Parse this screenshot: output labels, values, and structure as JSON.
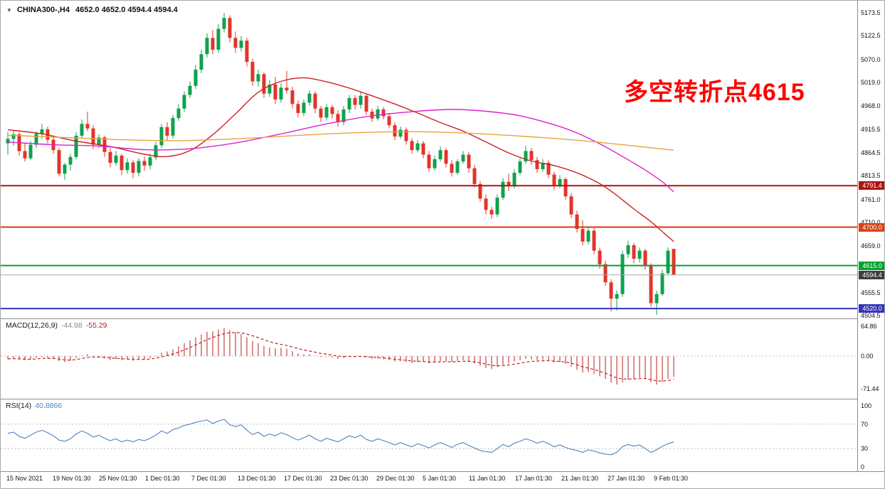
{
  "header": {
    "collapse_icon": "▼",
    "symbol": "CHINA300-,H4",
    "ohlc": "4652.0 4652.0 4594.4 4594.4"
  },
  "annotation": {
    "text": "多空转折点4615",
    "color": "#ff0000"
  },
  "price_axis": {
    "labels": [
      "5173.5",
      "5122.5",
      "5070.0",
      "5019.0",
      "4968.0",
      "4915.5",
      "4864.5",
      "4813.5",
      "4761.0",
      "4710.0",
      "4659.0",
      "4555.5",
      "4504.5"
    ]
  },
  "levels": [
    {
      "price": 4791.4,
      "label": "4791.4",
      "color": "#b01212",
      "badge_bg": "#b01212",
      "width": 2
    },
    {
      "price": 4700.0,
      "label": "4700.0",
      "color": "#d43a10",
      "badge_bg": "#d84315",
      "width": 2
    },
    {
      "price": 4615.0,
      "label": "4615.0",
      "color": "#00a32e",
      "badge_bg": "#00a32e",
      "width": 2
    },
    {
      "price": 4594.4,
      "label": "4594.4",
      "color": "#aaaaaa",
      "badge_bg": "#3d3d3d",
      "width": 1
    },
    {
      "price": 4520.0,
      "label": "4520.0",
      "color": "#3434b8",
      "badge_bg": "#3434b8",
      "width": 2
    }
  ],
  "macd_panel": {
    "name": "MACD(12,26,9)",
    "value_main": "-44.98",
    "value_signal": "-55.29",
    "axis_labels": [
      64.86,
      0.0,
      -71.44
    ]
  },
  "rsi_panel": {
    "name": "RSI(14)",
    "value": "40.8866",
    "axis_labels": [
      100,
      70,
      30,
      0
    ],
    "levels": [
      70,
      30
    ]
  },
  "colors": {
    "up": "#0fa24e",
    "down": "#e3342a",
    "macd_bar": "#dd8f8f",
    "macd_signal": "#c02020",
    "rsi_line": "#4f81bd",
    "grid_dotted": "#bdbdbd"
  },
  "chart_data": {
    "type": "candlestick",
    "symbol": "CHINA300",
    "timeframe": "H4",
    "price_range": [
      4504.5,
      5173.5
    ],
    "x_labels": [
      "15 Nov 2021",
      "19 Nov 01:30",
      "25 Nov 01:30",
      "1 Dec 01:30",
      "7 Dec 01:30",
      "13 Dec 01:30",
      "17 Dec 01:30",
      "23 Dec 01:30",
      "29 Dec 01:30",
      "5 Jan 01:30",
      "11 Jan 01:30",
      "17 Jan 01:30",
      "21 Jan 01:30",
      "27 Jan 01:30",
      "9 Feb 01:30"
    ],
    "candles": [
      [
        4885,
        4910,
        4860,
        4895
      ],
      [
        4895,
        4915,
        4880,
        4905
      ],
      [
        4905,
        4910,
        4858,
        4868
      ],
      [
        4868,
        4885,
        4845,
        4852
      ],
      [
        4852,
        4890,
        4848,
        4882
      ],
      [
        4882,
        4912,
        4875,
        4906
      ],
      [
        4906,
        4928,
        4895,
        4916
      ],
      [
        4916,
        4922,
        4885,
        4893
      ],
      [
        4893,
        4900,
        4862,
        4870
      ],
      [
        4870,
        4875,
        4812,
        4818
      ],
      [
        4818,
        4842,
        4805,
        4838
      ],
      [
        4838,
        4862,
        4825,
        4855
      ],
      [
        4855,
        4910,
        4850,
        4902
      ],
      [
        4902,
        4938,
        4895,
        4928
      ],
      [
        4928,
        4955,
        4912,
        4918
      ],
      [
        4918,
        4925,
        4872,
        4882
      ],
      [
        4882,
        4905,
        4875,
        4898
      ],
      [
        4898,
        4902,
        4855,
        4866
      ],
      [
        4866,
        4875,
        4832,
        4842
      ],
      [
        4842,
        4868,
        4836,
        4858
      ],
      [
        4858,
        4862,
        4815,
        4826
      ],
      [
        4826,
        4852,
        4818,
        4843
      ],
      [
        4843,
        4848,
        4808,
        4820
      ],
      [
        4820,
        4852,
        4812,
        4846
      ],
      [
        4846,
        4856,
        4825,
        4836
      ],
      [
        4836,
        4862,
        4828,
        4854
      ],
      [
        4854,
        4888,
        4848,
        4881
      ],
      [
        4881,
        4928,
        4875,
        4921
      ],
      [
        4921,
        4932,
        4892,
        4902
      ],
      [
        4902,
        4948,
        4896,
        4941
      ],
      [
        4941,
        4972,
        4935,
        4962
      ],
      [
        4962,
        5000,
        4955,
        4992
      ],
      [
        4992,
        5022,
        4985,
        5012
      ],
      [
        5012,
        5058,
        5005,
        5048
      ],
      [
        5048,
        5092,
        5040,
        5082
      ],
      [
        5082,
        5128,
        5075,
        5118
      ],
      [
        5118,
        5135,
        5082,
        5092
      ],
      [
        5092,
        5148,
        5085,
        5138
      ],
      [
        5138,
        5173.5,
        5130,
        5162
      ],
      [
        5162,
        5168,
        5108,
        5118
      ],
      [
        5118,
        5132,
        5085,
        5096
      ],
      [
        5096,
        5122,
        5088,
        5112
      ],
      [
        5112,
        5118,
        5055,
        5065
      ],
      [
        5065,
        5072,
        5012,
        5022
      ],
      [
        5022,
        5048,
        5010,
        5038
      ],
      [
        5038,
        5042,
        4985,
        4995
      ],
      [
        4995,
        5025,
        4988,
        5015
      ],
      [
        5015,
        5032,
        4972,
        4982
      ],
      [
        4982,
        5018,
        4975,
        5008
      ],
      [
        5008,
        5045,
        4995,
        5002
      ],
      [
        5002,
        5010,
        4962,
        4972
      ],
      [
        4972,
        4980,
        4942,
        4952
      ],
      [
        4952,
        4982,
        4945,
        4975
      ],
      [
        4975,
        5002,
        4968,
        4995
      ],
      [
        4995,
        5000,
        4952,
        4962
      ],
      [
        4962,
        4968,
        4932,
        4942
      ],
      [
        4942,
        4972,
        4935,
        4965
      ],
      [
        4965,
        4970,
        4940,
        4950
      ],
      [
        4950,
        4958,
        4922,
        4932
      ],
      [
        4932,
        4968,
        4925,
        4960
      ],
      [
        4960,
        4992,
        4952,
        4985
      ],
      [
        4985,
        4992,
        4960,
        4970
      ],
      [
        4970,
        4998,
        4962,
        4990
      ],
      [
        4990,
        4995,
        4948,
        4955
      ],
      [
        4955,
        4962,
        4932,
        4940
      ],
      [
        4940,
        4968,
        4935,
        4960
      ],
      [
        4960,
        4965,
        4938,
        4945
      ],
      [
        4945,
        4952,
        4918,
        4925
      ],
      [
        4925,
        4932,
        4892,
        4900
      ],
      [
        4900,
        4922,
        4895,
        4915
      ],
      [
        4915,
        4920,
        4882,
        4890
      ],
      [
        4890,
        4896,
        4862,
        4870
      ],
      [
        4870,
        4892,
        4865,
        4885
      ],
      [
        4885,
        4890,
        4852,
        4860
      ],
      [
        4860,
        4868,
        4822,
        4830
      ],
      [
        4830,
        4858,
        4825,
        4850
      ],
      [
        4850,
        4878,
        4845,
        4870
      ],
      [
        4870,
        4875,
        4832,
        4840
      ],
      [
        4840,
        4848,
        4812,
        4820
      ],
      [
        4820,
        4850,
        4815,
        4845
      ],
      [
        4845,
        4868,
        4840,
        4860
      ],
      [
        4860,
        4866,
        4820,
        4830
      ],
      [
        4830,
        4838,
        4788,
        4795
      ],
      [
        4795,
        4802,
        4756,
        4763
      ],
      [
        4763,
        4772,
        4728,
        4738
      ],
      [
        4738,
        4745,
        4718,
        4728
      ],
      [
        4728,
        4772,
        4722,
        4765
      ],
      [
        4765,
        4808,
        4760,
        4800
      ],
      [
        4800,
        4818,
        4780,
        4790
      ],
      [
        4790,
        4828,
        4785,
        4820
      ],
      [
        4820,
        4852,
        4815,
        4845
      ],
      [
        4845,
        4880,
        4840,
        4868
      ],
      [
        4868,
        4875,
        4838,
        4848
      ],
      [
        4848,
        4855,
        4820,
        4828
      ],
      [
        4828,
        4850,
        4822,
        4842
      ],
      [
        4842,
        4848,
        4808,
        4816
      ],
      [
        4816,
        4822,
        4782,
        4792
      ],
      [
        4792,
        4815,
        4786,
        4806
      ],
      [
        4806,
        4810,
        4760,
        4768
      ],
      [
        4768,
        4775,
        4720,
        4728
      ],
      [
        4728,
        4736,
        4688,
        4696
      ],
      [
        4696,
        4715,
        4660,
        4668
      ],
      [
        4668,
        4700,
        4662,
        4692
      ],
      [
        4692,
        4698,
        4640,
        4648
      ],
      [
        4648,
        4655,
        4608,
        4618
      ],
      [
        4618,
        4626,
        4570,
        4578
      ],
      [
        4578,
        4585,
        4514,
        4542
      ],
      [
        4542,
        4560,
        4516,
        4552
      ],
      [
        4552,
        4648,
        4546,
        4640
      ],
      [
        4640,
        4670,
        4632,
        4660
      ],
      [
        4660,
        4665,
        4620,
        4630
      ],
      [
        4630,
        4655,
        4622,
        4648
      ],
      [
        4648,
        4652,
        4606,
        4614
      ],
      [
        4614,
        4620,
        4524,
        4532
      ],
      [
        4532,
        4560,
        4506,
        4552
      ],
      [
        4552,
        4606,
        4548,
        4598
      ],
      [
        4598,
        4655,
        4594,
        4648
      ],
      [
        4652,
        4652,
        4594.4,
        4594.4
      ]
    ],
    "ma_lines": [
      {
        "name": "ma-fast-red",
        "color": "#cc2222",
        "points": [
          [
            0,
            4915
          ],
          [
            6,
            4906
          ],
          [
            12,
            4890
          ],
          [
            18,
            4878
          ],
          [
            24,
            4861
          ],
          [
            28,
            4856
          ],
          [
            32,
            4869
          ],
          [
            36,
            4904
          ],
          [
            40,
            4950
          ],
          [
            44,
            4998
          ],
          [
            48,
            5022
          ],
          [
            52,
            5030
          ],
          [
            56,
            5021
          ],
          [
            60,
            5007
          ],
          [
            64,
            4990
          ],
          [
            68,
            4972
          ],
          [
            72,
            4952
          ],
          [
            76,
            4931
          ],
          [
            80,
            4912
          ],
          [
            84,
            4888
          ],
          [
            88,
            4864
          ],
          [
            92,
            4846
          ],
          [
            96,
            4836
          ],
          [
            100,
            4820
          ],
          [
            104,
            4796
          ],
          [
            107,
            4770
          ],
          [
            110,
            4740
          ],
          [
            113,
            4712
          ],
          [
            115,
            4690
          ],
          [
            117,
            4668
          ]
        ]
      },
      {
        "name": "ma-mid-magenta",
        "color": "#dd22cc",
        "points": [
          [
            0,
            4888
          ],
          [
            8,
            4882
          ],
          [
            16,
            4879
          ],
          [
            24,
            4871
          ],
          [
            32,
            4873
          ],
          [
            40,
            4886
          ],
          [
            48,
            4906
          ],
          [
            56,
            4928
          ],
          [
            64,
            4946
          ],
          [
            72,
            4956
          ],
          [
            78,
            4960
          ],
          [
            84,
            4956
          ],
          [
            90,
            4946
          ],
          [
            96,
            4926
          ],
          [
            100,
            4908
          ],
          [
            104,
            4884
          ],
          [
            108,
            4856
          ],
          [
            112,
            4826
          ],
          [
            115,
            4800
          ],
          [
            117,
            4778
          ]
        ]
      },
      {
        "name": "ma-slow-orange",
        "color": "#e8a33d",
        "points": [
          [
            0,
            4903
          ],
          [
            10,
            4898
          ],
          [
            20,
            4893
          ],
          [
            30,
            4891
          ],
          [
            40,
            4895
          ],
          [
            50,
            4902
          ],
          [
            60,
            4908
          ],
          [
            70,
            4911
          ],
          [
            80,
            4908
          ],
          [
            90,
            4901
          ],
          [
            100,
            4892
          ],
          [
            108,
            4882
          ],
          [
            117,
            4870
          ]
        ]
      }
    ],
    "macd": {
      "range": [
        -71.44,
        64.86
      ],
      "histogram": [
        -6,
        -5,
        -7,
        -9,
        -7,
        -4,
        -2,
        -4,
        -6,
        -11,
        -13,
        -10,
        -4,
        1,
        4,
        1,
        -2,
        -5,
        -8,
        -7,
        -9,
        -8,
        -10,
        -7,
        -7,
        -4,
        1,
        7,
        10,
        15,
        21,
        28,
        34,
        41,
        47,
        53,
        54,
        58,
        61,
        57,
        52,
        48,
        41,
        33,
        28,
        22,
        19,
        17,
        18,
        16,
        11,
        6,
        4,
        4,
        1,
        -2,
        -1,
        -3,
        -6,
        -4,
        -1,
        -1,
        0,
        -3,
        -6,
        -5,
        -7,
        -9,
        -12,
        -11,
        -13,
        -15,
        -13,
        -13,
        -16,
        -14,
        -11,
        -11,
        -13,
        -11,
        -9,
        -12,
        -16,
        -21,
        -26,
        -28,
        -24,
        -19,
        -16,
        -12,
        -9,
        -6,
        -7,
        -9,
        -8,
        -10,
        -14,
        -13,
        -17,
        -23,
        -30,
        -36,
        -35,
        -39,
        -44,
        -50,
        -58,
        -62,
        -57,
        -51,
        -49,
        -47,
        -49,
        -57,
        -62,
        -56,
        -50,
        -44.98
      ]
    },
    "rsi": {
      "range": [
        0,
        100
      ],
      "values": [
        55,
        57,
        50,
        47,
        52,
        57,
        60,
        56,
        51,
        44,
        42,
        46,
        54,
        59,
        55,
        49,
        52,
        47,
        43,
        46,
        41,
        44,
        41,
        45,
        43,
        47,
        52,
        59,
        55,
        61,
        64,
        68,
        70,
        73,
        75,
        77,
        71,
        75,
        78,
        69,
        66,
        69,
        60,
        53,
        57,
        50,
        54,
        51,
        56,
        53,
        48,
        44,
        48,
        52,
        46,
        42,
        47,
        44,
        41,
        46,
        51,
        48,
        52,
        45,
        42,
        46,
        43,
        40,
        36,
        40,
        36,
        33,
        38,
        35,
        31,
        36,
        40,
        36,
        32,
        37,
        40,
        35,
        31,
        27,
        25,
        24,
        30,
        37,
        33,
        39,
        42,
        46,
        43,
        39,
        42,
        38,
        33,
        36,
        32,
        29,
        27,
        24,
        28,
        26,
        23,
        21,
        20,
        24,
        33,
        37,
        34,
        36,
        30,
        24,
        28,
        34,
        38,
        40.89
      ]
    }
  }
}
